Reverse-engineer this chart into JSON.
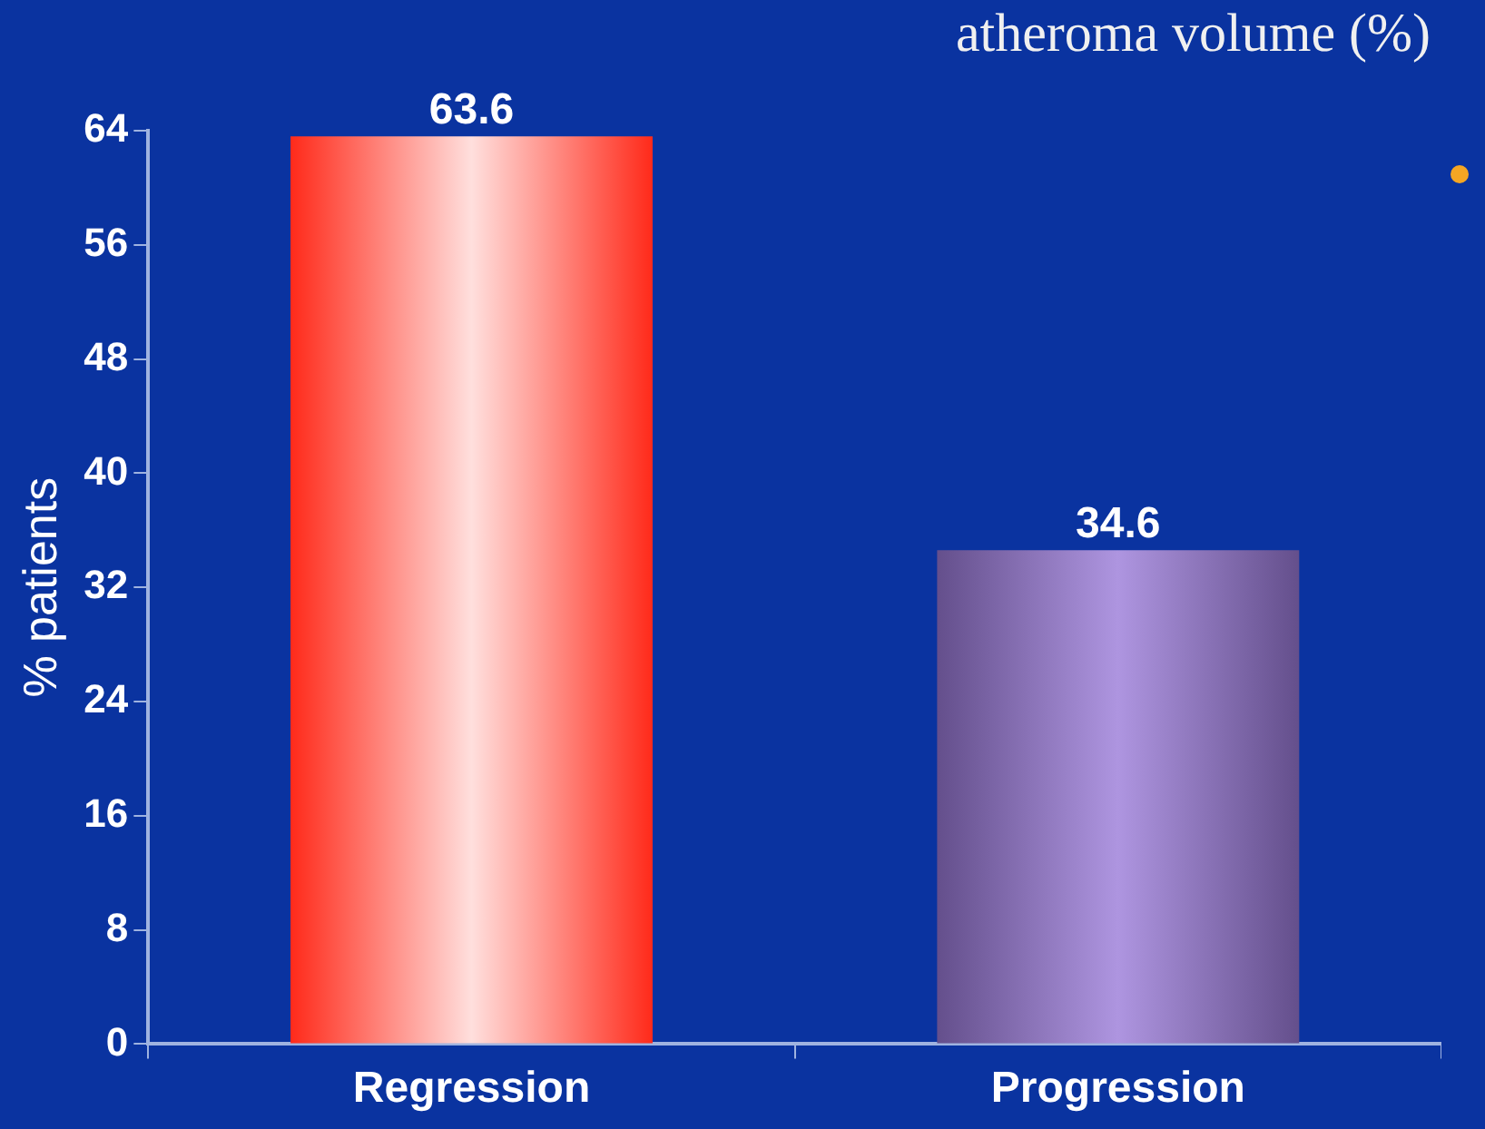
{
  "chart_data": {
    "type": "bar",
    "title": "atheroma volume (%)",
    "ylabel": "% patients",
    "categories": [
      "Regression",
      "Progression"
    ],
    "values": [
      63.6,
      34.6
    ],
    "colors": [
      "#ff2a1a",
      "#9a7ad8"
    ],
    "ylim": [
      0,
      64
    ],
    "yticks": [
      0,
      8,
      16,
      24,
      32,
      40,
      48,
      56,
      64
    ],
    "grid": false,
    "legend": false,
    "data_labels": true
  }
}
